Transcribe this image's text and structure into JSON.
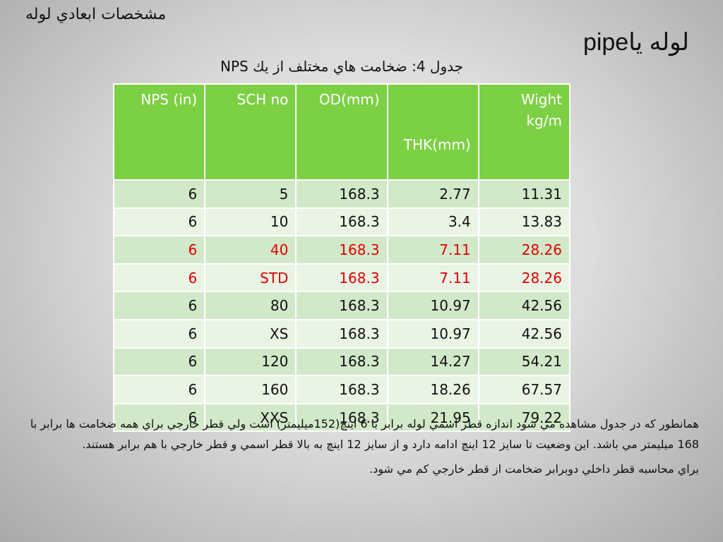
{
  "slide": {
    "top_title": "مشخصات ابعادي لوله",
    "pipe_title": "لوله ياpipe",
    "caption": "جدول 4: ضخامت هاي مختلف از يك NPS"
  },
  "table": {
    "headers": {
      "nps": "NPS (in)",
      "sch": "SCH no",
      "od": "OD(mm)",
      "thk": "THK(mm)",
      "wight": "Wight kg/m"
    },
    "rows": [
      {
        "nps": "6",
        "sch": "5",
        "od": "168.3",
        "thk": "2.77",
        "wight": "11.31"
      },
      {
        "nps": "6",
        "sch": "10",
        "od": "168.3",
        "thk": "3.4",
        "wight": "13.83"
      },
      {
        "nps": "6",
        "sch": "40",
        "od": "168.3",
        "thk": "7.11",
        "wight": "28.26"
      },
      {
        "nps": "6",
        "sch": "STD",
        "od": "168.3",
        "thk": "7.11",
        "wight": "28.26"
      },
      {
        "nps": "6",
        "sch": "80",
        "od": "168.3",
        "thk": "10.97",
        "wight": "42.56"
      },
      {
        "nps": "6",
        "sch": "XS",
        "od": "168.3",
        "thk": "10.97",
        "wight": "42.56"
      },
      {
        "nps": "6",
        "sch": "120",
        "od": "168.3",
        "thk": "14.27",
        "wight": "54.21"
      },
      {
        "nps": "6",
        "sch": "160",
        "od": "168.3",
        "thk": "18.26",
        "wight": "67.57"
      },
      {
        "nps": "6",
        "sch": "XXS",
        "od": "168.3",
        "thk": "21.95",
        "wight": "79.22"
      }
    ]
  },
  "colors": {
    "header_bg": "#7cd044",
    "row_odd": "#d2e9c9",
    "row_even": "#e9f4e5",
    "highlight_text": "#e00000"
  },
  "body": {
    "paragraph1": "همانطور كه در جدول مشاهده مي شود اندازه قطر اسمي لوله برابر با 6 اينچ(152ميليمتر) است ولي قطر خارجي براي همه ضخامت ها برابر با 168 ميليمتر مي باشد. اين وضعيت تا سايز 12 اينچ ادامه دارد و از سايز 12 اينچ به بالا قطر اسمي و قطر خارجي با هم برابر هستند.",
    "paragraph2": "براي محاسبه قطر داخلي دوبرابر ضخامت از قطر خارجي كم مي شود."
  }
}
